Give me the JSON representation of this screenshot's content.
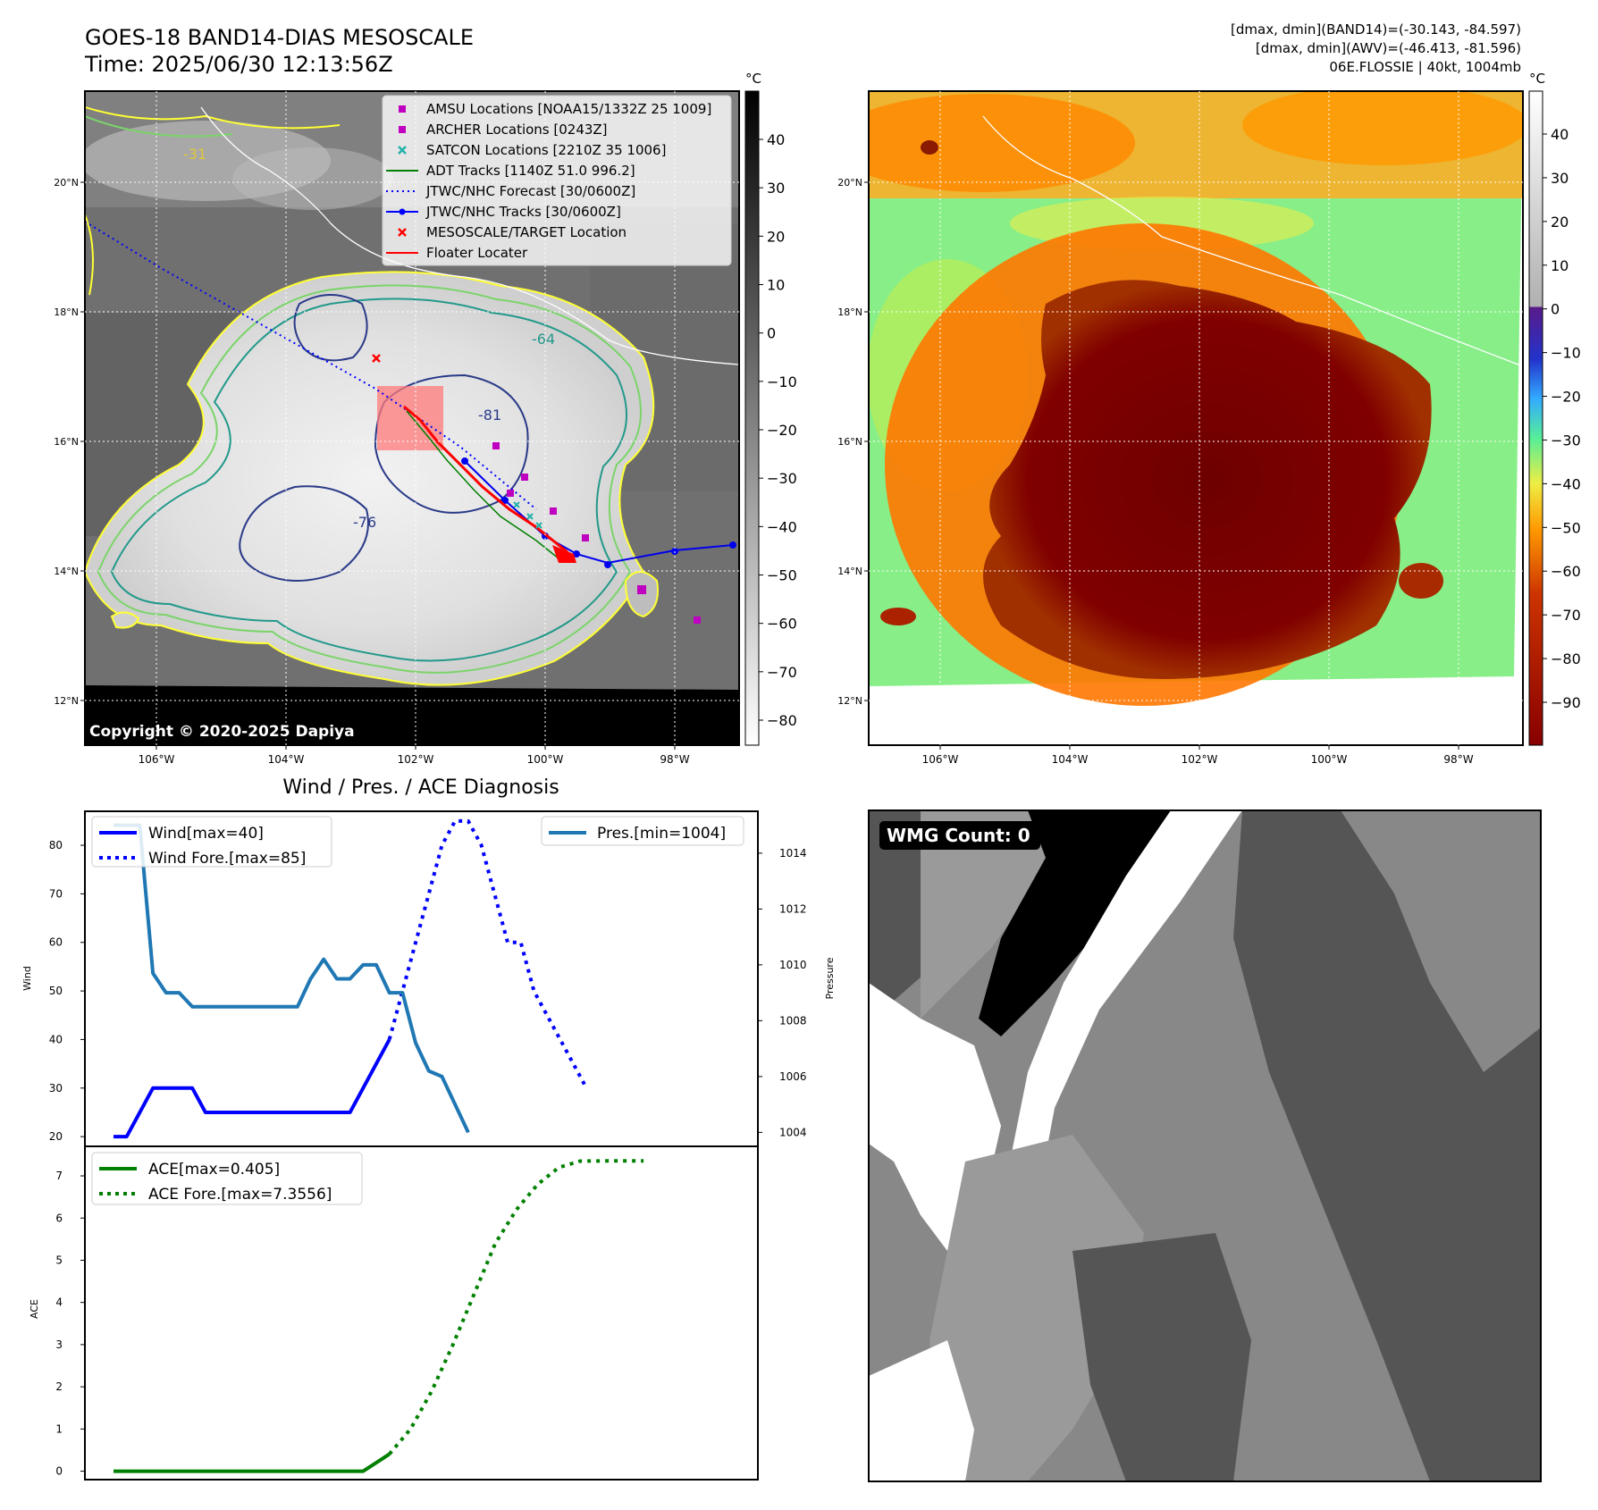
{
  "header": {
    "title_line1": "GOES-18 BAND14-DIAS MESOSCALE",
    "title_line2": "Time: 2025/06/30 12:13:56Z",
    "stats_line1": "[dmax, dmin](BAND14)=(-30.143, -84.597)",
    "stats_line2": "[dmax, dmin](AWV)=(-46.413, -81.596)",
    "stats_line3": "06E.FLOSSIE | 40kt, 1004mb"
  },
  "map_axes": {
    "lat_ticks": [
      "20°N",
      "18°N",
      "16°N",
      "14°N",
      "12°N"
    ],
    "lon_ticks": [
      "106°W",
      "104°W",
      "102°W",
      "100°W",
      "98°W"
    ]
  },
  "left_map": {
    "copyright": "Copyright © 2020-2025 Dapiya",
    "contour_labels": [
      "-31",
      "-64",
      "-76",
      "-81"
    ],
    "legend": [
      {
        "label": "AMSU Locations [NOAA15/1332Z 25 1009]",
        "color": "#c000c0",
        "marker": "square"
      },
      {
        "label": "ARCHER Locations [0243Z]",
        "color": "#c000c0",
        "marker": "square"
      },
      {
        "label": "SATCON Locations [2210Z 35 1006]",
        "color": "#20b2aa",
        "marker": "x"
      },
      {
        "label": "ADT Tracks [1140Z 51.0 996.2]",
        "color": "#008000",
        "marker": "line"
      },
      {
        "label": "JTWC/NHC Forecast [30/0600Z]",
        "color": "#0000ff",
        "marker": "dotted"
      },
      {
        "label": "JTWC/NHC Tracks [30/0600Z]",
        "color": "#0000ff",
        "marker": "line-dot"
      },
      {
        "label": "MESOSCALE/TARGET Location",
        "color": "#ff0000",
        "marker": "x"
      },
      {
        "label": "Floater Locater",
        "color": "#ff0000",
        "marker": "line"
      }
    ],
    "colorbar": {
      "unit": "°C",
      "ticks": [
        "40",
        "30",
        "20",
        "10",
        "0",
        "−10",
        "−20",
        "−30",
        "−40",
        "−50",
        "−60",
        "−70",
        "−80"
      ]
    }
  },
  "right_map": {
    "colorbar": {
      "unit": "°C",
      "ticks": [
        "40",
        "30",
        "20",
        "10",
        "0",
        "−10",
        "−20",
        "−30",
        "−40",
        "−50",
        "−60",
        "−70",
        "−80",
        "−90"
      ]
    }
  },
  "wmg_panel": {
    "label": "WMG Count: 0"
  },
  "chart_data": [
    {
      "type": "line",
      "title": "Wind / Pres. / ACE Diagnosis",
      "ylabel": "Wind",
      "y2label": "Pressure",
      "ylim": [
        18,
        87
      ],
      "y2lim": [
        1003.5,
        1015.5
      ],
      "yticks": [
        "80",
        "70",
        "60",
        "50",
        "40",
        "30",
        "20"
      ],
      "y2ticks": [
        "1014",
        "1012",
        "1010",
        "1008",
        "1006",
        "1004"
      ],
      "legend_left": [
        "Wind[max=40]",
        "Wind Fore.[max=85]"
      ],
      "legend_right": [
        "Pres.[min=1004]"
      ],
      "series": [
        {
          "name": "Wind[max=40]",
          "style": "solid",
          "color": "#0000ff",
          "values": [
            20,
            20,
            25,
            30,
            30,
            30,
            30,
            25,
            25,
            25,
            25,
            25,
            25,
            25,
            25,
            25,
            25,
            25,
            25,
            30,
            35,
            40
          ]
        },
        {
          "name": "Wind Fore.[max=85]",
          "style": "dotted",
          "color": "#0000ff",
          "x_start": 21,
          "values": [
            40,
            50,
            60,
            70,
            80,
            85,
            85,
            80,
            70,
            60,
            60,
            50,
            45,
            40,
            35,
            30
          ]
        },
        {
          "name": "Pres.[min=1004]",
          "style": "solid",
          "color": "#1f77b4",
          "axis": "right",
          "values": [
            1015,
            1015,
            1015,
            1009.7,
            1009,
            1009,
            1008.5,
            1008.5,
            1008.5,
            1008.5,
            1008.5,
            1008.5,
            1008.5,
            1008.5,
            1008.5,
            1009.5,
            1010.2,
            1009.5,
            1009.5,
            1010,
            1010,
            1009,
            1009,
            1007.2,
            1006.2,
            1006,
            1005,
            1004
          ]
        }
      ]
    },
    {
      "type": "line",
      "ylabel": "ACE",
      "ylim": [
        -0.2,
        7.7
      ],
      "yticks": [
        "7",
        "6",
        "5",
        "4",
        "3",
        "2",
        "1",
        "0"
      ],
      "legend": [
        "ACE[max=0.405]",
        "ACE Fore.[max=7.3556]"
      ],
      "series": [
        {
          "name": "ACE[max=0.405]",
          "style": "solid",
          "color": "#008000",
          "values": [
            0,
            0,
            0,
            0,
            0,
            0,
            0,
            0,
            0,
            0,
            0,
            0,
            0,
            0,
            0,
            0,
            0,
            0,
            0,
            0,
            0.2,
            0.405
          ]
        },
        {
          "name": "ACE Fore.[max=7.3556]",
          "style": "dotted",
          "color": "#008000",
          "x_start": 21,
          "values": [
            0.405,
            1.0,
            1.9,
            3.0,
            4.2,
            5.4,
            6.2,
            6.8,
            7.2,
            7.35,
            7.3556,
            7.3556,
            7.3556
          ]
        }
      ]
    }
  ]
}
